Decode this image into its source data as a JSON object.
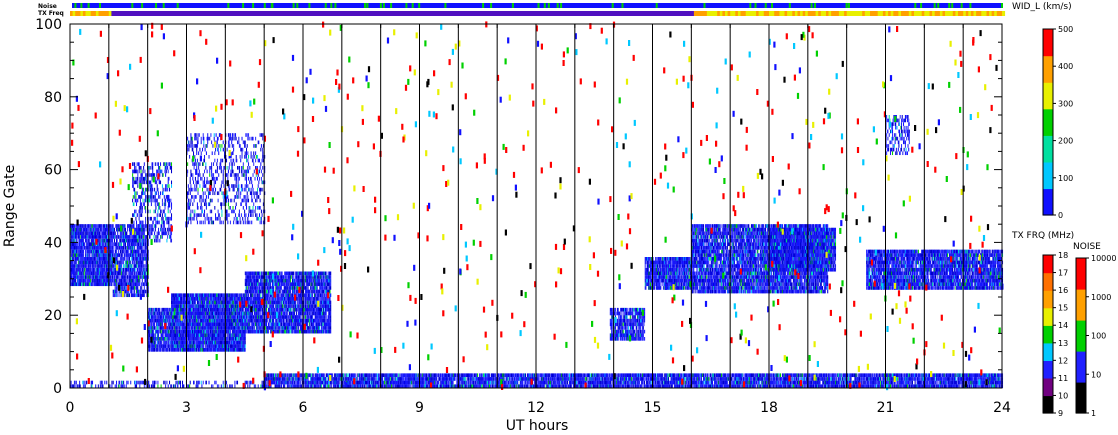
{
  "chart_data": {
    "type": "heatmap",
    "title": "",
    "xlabel": "UT hours",
    "ylabel": "Range Gate",
    "xlim": [
      0,
      24
    ],
    "ylim": [
      0,
      100
    ],
    "x_ticks": [
      "0",
      "3",
      "6",
      "9",
      "12",
      "15",
      "18",
      "21",
      "24"
    ],
    "y_ticks": [
      "0",
      "20",
      "40",
      "60",
      "80",
      "100"
    ],
    "grid": "vertical lines every hour",
    "status_bars": {
      "noise_label": "Noise",
      "txfreq_label": "TX Freq"
    },
    "colorbars": [
      {
        "label": "WID_L (km/s)",
        "range": [
          0,
          500
        ],
        "ticks": [
          "0",
          "100",
          "200",
          "300",
          "400",
          "500"
        ],
        "colors": [
          "#1010ff",
          "#00c8ff",
          "#00e0a0",
          "#00d000",
          "#e8f000",
          "#ffa000",
          "#ff0000"
        ]
      },
      {
        "label": "TX FRQ (MHz)",
        "ticks": [
          "9",
          "10",
          "11",
          "12",
          "13",
          "14",
          "15",
          "16",
          "17",
          "18"
        ],
        "colors": [
          "#000000",
          "#700080",
          "#2020ff",
          "#00c8ff",
          "#00d000",
          "#e8f000",
          "#ffa000",
          "#ff7000",
          "#ff0000"
        ]
      },
      {
        "label": "NOISE",
        "ticks": [
          "1",
          "10",
          "100",
          "1000",
          "10000"
        ],
        "colors": [
          "#000000",
          "#2020ff",
          "#00d000",
          "#ffa000",
          "#ff0000"
        ]
      }
    ],
    "scatter_regions": [
      {
        "x": [
          0.0,
          1.1
        ],
        "y": [
          28,
          45
        ],
        "density": 0.9
      },
      {
        "x": [
          1.1,
          2.0
        ],
        "y": [
          25,
          45
        ],
        "density": 0.75
      },
      {
        "x": [
          1.6,
          2.6
        ],
        "y": [
          40,
          62
        ],
        "density": 0.35
      },
      {
        "x": [
          2.0,
          2.6
        ],
        "y": [
          10,
          22
        ],
        "density": 0.8
      },
      {
        "x": [
          2.6,
          4.5
        ],
        "y": [
          10,
          26
        ],
        "density": 0.95
      },
      {
        "x": [
          4.5,
          6.7
        ],
        "y": [
          15,
          32
        ],
        "density": 0.85
      },
      {
        "x": [
          3.0,
          5.0
        ],
        "y": [
          45,
          70
        ],
        "density": 0.25
      },
      {
        "x": [
          13.9,
          14.8
        ],
        "y": [
          13,
          22
        ],
        "density": 0.7
      },
      {
        "x": [
          14.8,
          16.0
        ],
        "y": [
          27,
          36
        ],
        "density": 0.85
      },
      {
        "x": [
          16.0,
          19.5
        ],
        "y": [
          26,
          45
        ],
        "density": 0.8
      },
      {
        "x": [
          18.0,
          19.7
        ],
        "y": [
          32,
          44
        ],
        "density": 0.9
      },
      {
        "x": [
          20.5,
          24.0
        ],
        "y": [
          27,
          38
        ],
        "density": 0.85
      },
      {
        "x": [
          21.0,
          21.6
        ],
        "y": [
          64,
          75
        ],
        "density": 0.4
      },
      {
        "x": [
          5.0,
          24.0
        ],
        "y": [
          0,
          4
        ],
        "density": 0.85
      },
      {
        "x": [
          0.0,
          5.0
        ],
        "y": [
          0,
          2
        ],
        "density": 0.3
      }
    ]
  }
}
